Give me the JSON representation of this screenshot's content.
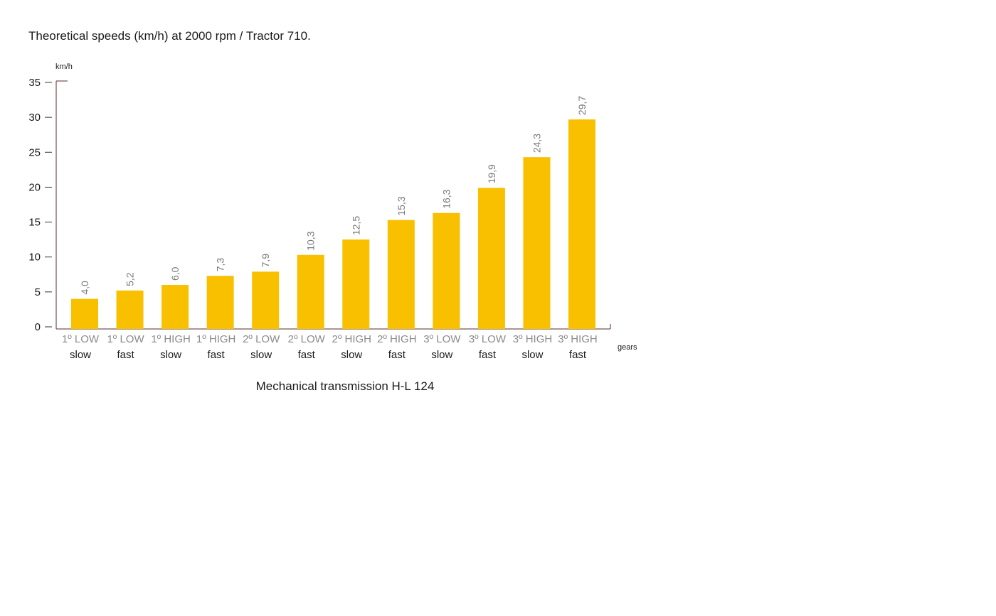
{
  "chart_data": {
    "type": "bar",
    "title": "Theoretical speeds (km/h) at 2000 rpm / Tractor 710.",
    "ylabel": "km/h",
    "xlabel": "gears",
    "caption": "Mechanical transmission H-L 124",
    "ylim": [
      0,
      35
    ],
    "yticks": [
      "0",
      "5",
      "10",
      "15",
      "20",
      "25",
      "30",
      "35"
    ],
    "categories": [
      {
        "gear": "1º LOW",
        "mode": "slow"
      },
      {
        "gear": "1º LOW",
        "mode": "fast"
      },
      {
        "gear": "1º HIGH",
        "mode": "slow"
      },
      {
        "gear": "1º HIGH",
        "mode": "fast"
      },
      {
        "gear": "2º LOW",
        "mode": "slow"
      },
      {
        "gear": "2º LOW",
        "mode": "fast"
      },
      {
        "gear": "2º HIGH",
        "mode": "slow"
      },
      {
        "gear": "2º HIGH",
        "mode": "fast"
      },
      {
        "gear": "3º LOW",
        "mode": "slow"
      },
      {
        "gear": "3º LOW",
        "mode": "fast"
      },
      {
        "gear": "3º HIGH",
        "mode": "slow"
      },
      {
        "gear": "3º HIGH",
        "mode": "fast"
      }
    ],
    "values": [
      4.0,
      5.2,
      6.0,
      7.3,
      7.9,
      10.3,
      12.5,
      15.3,
      16.3,
      19.9,
      24.3,
      29.7
    ],
    "value_labels": [
      "4,0",
      "5,2",
      "6,0",
      "7,3",
      "7,9",
      "10,3",
      "12,5",
      "15,3",
      "16,3",
      "19,9",
      "24,3",
      "29,7"
    ],
    "bar_color": "#f9c000",
    "axis_color": "#5a2a2a",
    "grid": false
  }
}
